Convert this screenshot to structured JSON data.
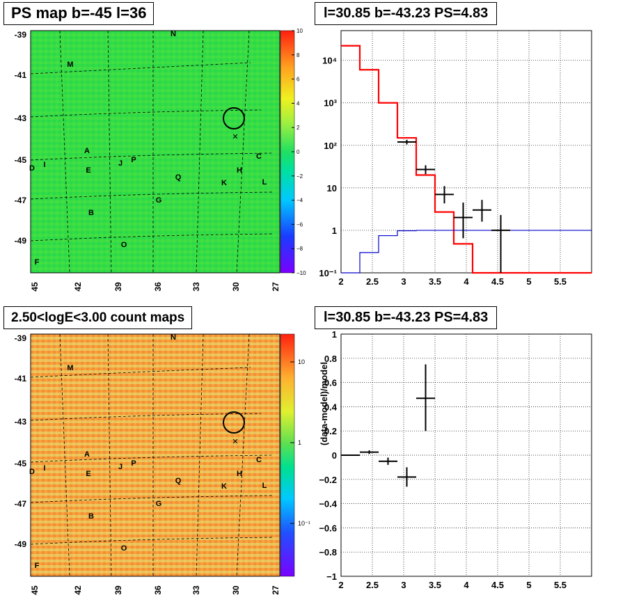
{
  "panels": {
    "ps_map": {
      "title": "PS map b=-45 l=36",
      "colorbar_ticks": [
        "10",
        "8",
        "6",
        "4",
        "2",
        "0",
        "−2",
        "−4",
        "−6",
        "−8",
        "−10"
      ],
      "y_ticks": [
        "-39",
        "-41",
        "-43",
        "-45",
        "-47",
        "-49"
      ],
      "x_ticks": [
        "45",
        "42",
        "39",
        "36",
        "33",
        "30",
        "27"
      ],
      "source_labels": [
        "N",
        "M",
        "A",
        "C",
        "D",
        "I",
        "E",
        "J",
        "P",
        "H",
        "Q",
        "K",
        "L",
        "G",
        "B",
        "O",
        "F"
      ]
    },
    "count_map": {
      "title": "2.50<logE<3.00 count maps",
      "colorbar_ticks": [
        "10",
        "1",
        "10⁻¹"
      ],
      "y_ticks": [
        "-39",
        "-41",
        "-43",
        "-45",
        "-47",
        "-49"
      ],
      "x_ticks": [
        "45",
        "42",
        "39",
        "36",
        "33",
        "30",
        "27"
      ],
      "source_labels": [
        "N",
        "M",
        "A",
        "C",
        "D",
        "I",
        "E",
        "J",
        "P",
        "H",
        "Q",
        "K",
        "L",
        "G",
        "B",
        "O",
        "F"
      ]
    },
    "spectrum": {
      "title": "l=30.85 b=-43.23 PS=4.83"
    },
    "residual": {
      "title": "l=30.85 b=-43.23 PS=4.83",
      "ylabel": "(data-model)/model"
    }
  },
  "colors": {
    "model": "#ff0000",
    "background_model": "#0000cc",
    "data": "#000000",
    "ps_map_bg": "#33dd44",
    "count_map_bg": "#f0b050"
  },
  "chart_data": [
    {
      "type": "heatmap",
      "title": "PS map b=-45 l=36",
      "xlabel": "",
      "ylabel": "",
      "x_ticks": [
        "45",
        "42",
        "39",
        "36",
        "33",
        "30",
        "27"
      ],
      "y_ticks": [
        "-39",
        "-41",
        "-43",
        "-45",
        "-47",
        "-49"
      ],
      "colorbar": {
        "min": -10,
        "max": 10,
        "ticks": [
          10,
          8,
          6,
          4,
          2,
          0,
          -2,
          -4,
          -6,
          -8,
          -10
        ]
      },
      "grid": true
    },
    {
      "type": "line",
      "title": "l=30.85 b=-43.23 PS=4.83",
      "xlabel": "",
      "ylabel": "",
      "xlim": [
        2,
        6
      ],
      "ylim": [
        0.1,
        50000
      ],
      "yscale": "log",
      "x_ticks": [
        "2",
        "2.5",
        "3",
        "3.5",
        "4",
        "4.5",
        "5",
        "5.5"
      ],
      "y_ticks": [
        "10⁴",
        "10³",
        "10²",
        "10",
        "1",
        "10⁻¹"
      ],
      "grid": true,
      "series": [
        {
          "style": "step",
          "color": "#ff0000",
          "bins": [
            [
              2.0,
              2.3,
              22000
            ],
            [
              2.3,
              2.6,
              6000
            ],
            [
              2.6,
              2.9,
              1000
            ],
            [
              2.9,
              3.2,
              150
            ],
            [
              3.2,
              3.5,
              20
            ],
            [
              3.5,
              3.8,
              2.7
            ],
            [
              3.8,
              4.1,
              0.48
            ],
            [
              4.1,
              4.4,
              0.1
            ],
            [
              4.4,
              6.0,
              0.1
            ]
          ]
        },
        {
          "style": "step",
          "color": "#0000cc",
          "bins": [
            [
              2.0,
              2.3,
              0.01
            ],
            [
              2.3,
              2.6,
              0.3
            ],
            [
              2.6,
              2.9,
              0.75
            ],
            [
              2.9,
              3.2,
              0.98
            ],
            [
              3.2,
              3.5,
              1.0
            ],
            [
              3.5,
              6.0,
              1.0
            ]
          ]
        },
        {
          "style": "errorbars",
          "color": "#000000",
          "points": [
            {
              "x": 3.05,
              "y": 120,
              "xerr": 0.15,
              "ylo": 105,
              "yhi": 135
            },
            {
              "x": 3.35,
              "y": 27,
              "xerr": 0.15,
              "ylo": 21,
              "yhi": 34
            },
            {
              "x": 3.65,
              "y": 7,
              "xerr": 0.15,
              "ylo": 4.3,
              "yhi": 11
            },
            {
              "x": 3.95,
              "y": 2,
              "xerr": 0.15,
              "ylo": 0.65,
              "yhi": 4.5
            },
            {
              "x": 4.25,
              "y": 3,
              "xerr": 0.15,
              "ylo": 1.6,
              "yhi": 5.2
            },
            {
              "x": 4.55,
              "y": 1,
              "xerr": 0.15,
              "ylo": 0.1,
              "yhi": 2.3
            }
          ]
        }
      ]
    },
    {
      "type": "heatmap",
      "title": "2.50<logE<3.00 count maps",
      "xlabel": "",
      "ylabel": "",
      "x_ticks": [
        "45",
        "42",
        "39",
        "36",
        "33",
        "30",
        "27"
      ],
      "y_ticks": [
        "-39",
        "-41",
        "-43",
        "-45",
        "-47",
        "-49"
      ],
      "colorbar": {
        "scale": "log",
        "ticks": [
          "10",
          "1",
          "10⁻¹"
        ]
      },
      "grid": true
    },
    {
      "type": "scatter",
      "title": "l=30.85 b=-43.23 PS=4.83",
      "xlabel": "",
      "ylabel": "(data-model)/model",
      "xlim": [
        2,
        6
      ],
      "ylim": [
        -1,
        1
      ],
      "x_ticks": [
        "2",
        "2.5",
        "3",
        "3.5",
        "4",
        "4.5",
        "5",
        "5.5"
      ],
      "y_ticks": [
        "1",
        "0.8",
        "0.6",
        "0.4",
        "0.2",
        "0",
        "−0.2",
        "−0.4",
        "−0.6",
        "−0.8",
        "−1"
      ],
      "grid": true,
      "series": [
        {
          "style": "errorbars",
          "color": "#000000",
          "points": [
            {
              "x": 2.15,
              "y": 0.0,
              "xerr": 0.15,
              "ylo": -0.005,
              "yhi": 0.005
            },
            {
              "x": 2.45,
              "y": 0.025,
              "xerr": 0.15,
              "ylo": 0.01,
              "yhi": 0.04
            },
            {
              "x": 2.75,
              "y": -0.05,
              "xerr": 0.15,
              "ylo": -0.08,
              "yhi": -0.02
            },
            {
              "x": 3.05,
              "y": -0.18,
              "xerr": 0.15,
              "ylo": -0.26,
              "yhi": -0.1
            },
            {
              "x": 3.35,
              "y": 0.47,
              "xerr": 0.15,
              "ylo": 0.2,
              "yhi": 0.75
            }
          ]
        }
      ]
    }
  ]
}
